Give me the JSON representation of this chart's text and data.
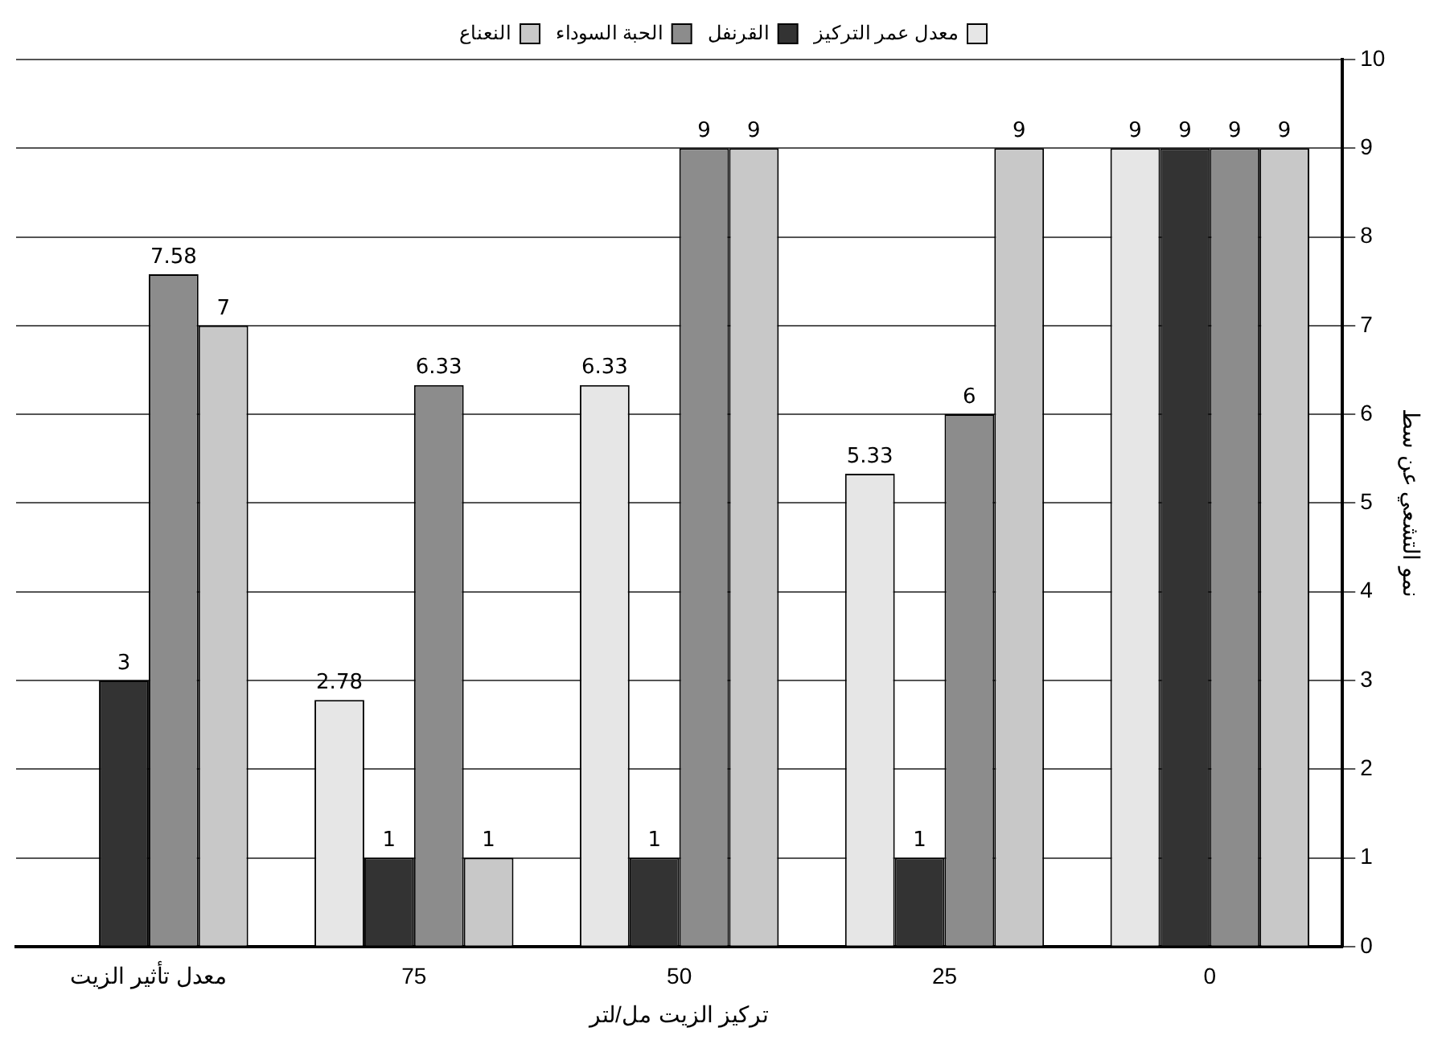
{
  "chart_data": {
    "type": "bar",
    "xlabel": "تركيز الزيت مل/لتر",
    "ylabel": "نمو التشعي عن سط",
    "categories": [
      "معدل تأثير الزيت",
      "75",
      "50",
      "25",
      "0"
    ],
    "series": [
      {
        "name": "معدل عمر التركيز",
        "color": "#e6e6e6",
        "values": [
          null,
          2.78,
          6.33,
          5.33,
          9
        ]
      },
      {
        "name": "القرنفل",
        "color": "#333333",
        "values": [
          3,
          1,
          1,
          1,
          9
        ]
      },
      {
        "name": "الحبة السوداء",
        "color": "#8c8c8c",
        "values": [
          7.58,
          6.33,
          9,
          6,
          9
        ]
      },
      {
        "name": "النعناع",
        "color": "#c8c8c8",
        "values": [
          7,
          1,
          9,
          9,
          9
        ]
      }
    ],
    "ylim": [
      0,
      10
    ],
    "yticks": [
      0,
      1,
      2,
      3,
      4,
      5,
      6,
      7,
      8,
      9,
      10
    ],
    "grid": "y",
    "legend": "top",
    "data_labels": true
  }
}
